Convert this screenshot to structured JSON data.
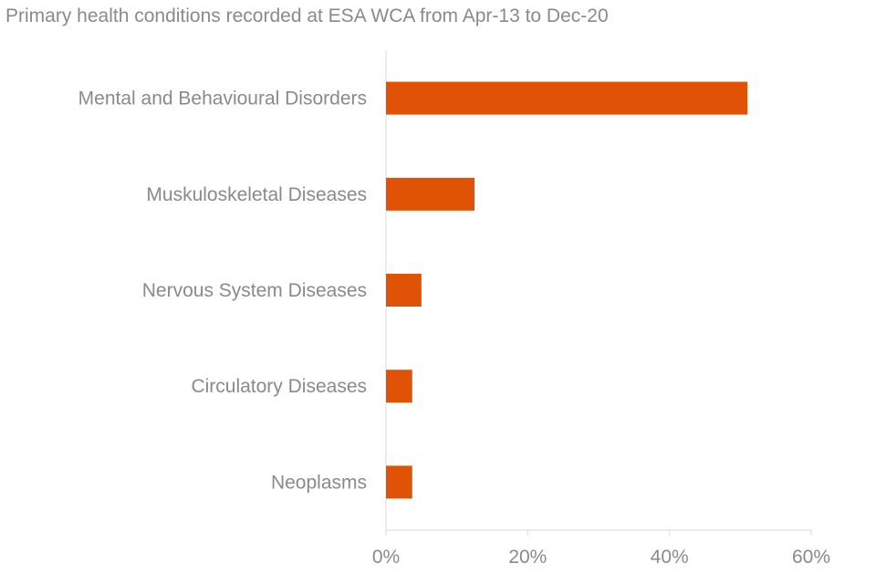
{
  "chart_data": {
    "type": "bar",
    "orientation": "horizontal",
    "title": "Primary health conditions recorded at ESA WCA from Apr-13 to Dec-20",
    "categories": [
      "Mental and Behavioural Disorders",
      "Muskuloskeletal Diseases",
      "Nervous System Diseases",
      "Circulatory Diseases",
      "Neoplasms"
    ],
    "values": [
      51,
      12.5,
      5,
      3.7,
      3.7
    ],
    "xlim": [
      0,
      60
    ],
    "xticks": [
      "0%",
      "20%",
      "40%",
      "60%"
    ],
    "bar_color": "#e05206",
    "grid": false
  }
}
